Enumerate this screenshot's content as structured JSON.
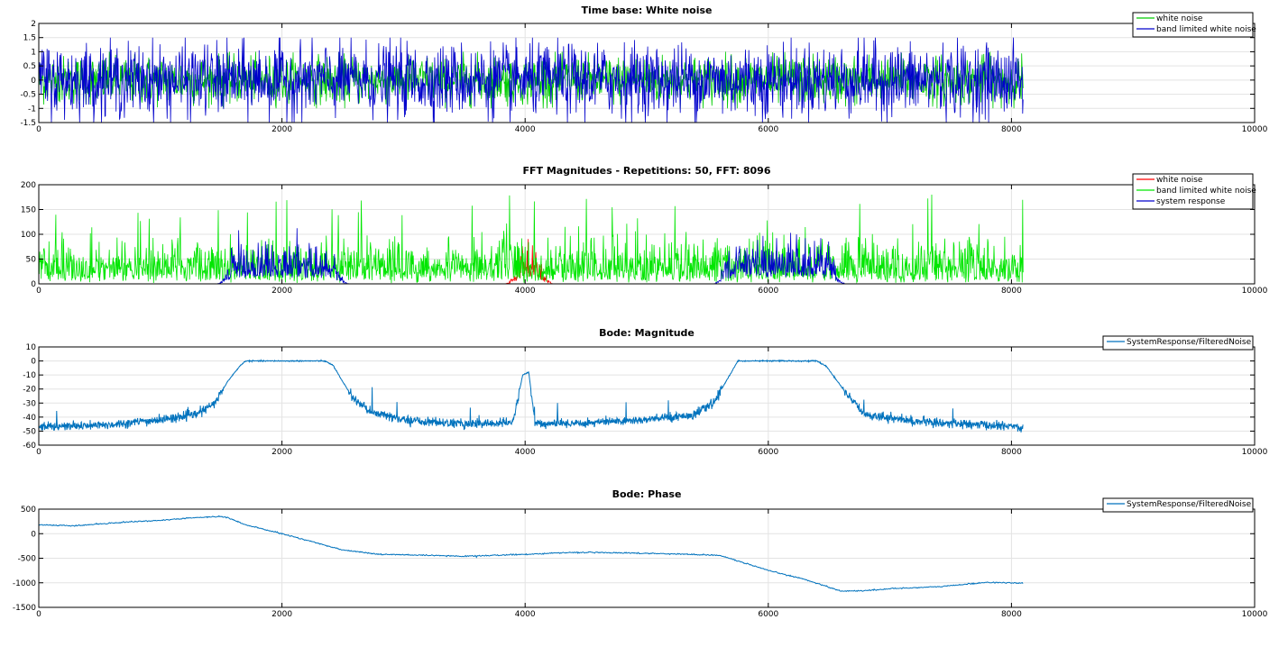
{
  "chart_data": [
    {
      "type": "line",
      "title": "Time base: White noise",
      "xlim": [
        0,
        10000
      ],
      "ylim": [
        -1.5,
        2
      ],
      "xticks": [
        0,
        2000,
        4000,
        6000,
        8000,
        10000
      ],
      "yticks": [
        -1.5,
        -1,
        -0.5,
        0,
        0.5,
        1,
        1.5,
        2
      ],
      "grid": true,
      "legend_position": "top-right",
      "series": [
        {
          "name": "white noise",
          "color": "#00cc00",
          "kind": "noise",
          "x_range": [
            0,
            8096
          ],
          "amplitude": 1.0,
          "values": []
        },
        {
          "name": "band limited white noise",
          "color": "#0000cc",
          "kind": "noise",
          "x_range": [
            0,
            8096
          ],
          "amplitude": 1.5,
          "values": []
        }
      ]
    },
    {
      "type": "line",
      "title": "FFT Magnitudes - Repetitions: 50, FFT: 8096",
      "xlim": [
        0,
        10000
      ],
      "ylim": [
        0,
        200
      ],
      "xticks": [
        0,
        2000,
        4000,
        6000,
        8000,
        10000
      ],
      "yticks": [
        0,
        50,
        100,
        150,
        200
      ],
      "grid": true,
      "legend_position": "top-right",
      "series": [
        {
          "name": "white noise",
          "color": "#ff0000",
          "kind": "fft-band",
          "bands": [
            [
              3970,
              4100
            ]
          ],
          "level": 110,
          "values": []
        },
        {
          "name": "band limited white noise",
          "color": "#00e600",
          "kind": "fft-full",
          "x_range": [
            0,
            8096
          ],
          "level": 110,
          "values": []
        },
        {
          "name": "system response",
          "color": "#0000cc",
          "kind": "fft-band",
          "bands": [
            [
              1600,
              2420
            ],
            [
              5680,
              6500
            ]
          ],
          "level": 120,
          "values": []
        }
      ]
    },
    {
      "type": "line",
      "title": "Bode: Magnitude",
      "xlim": [
        0,
        10000
      ],
      "ylim": [
        -60,
        10
      ],
      "xticks": [
        0,
        2000,
        4000,
        6000,
        8000,
        10000
      ],
      "yticks": [
        -60,
        -50,
        -40,
        -30,
        -20,
        -10,
        0,
        10
      ],
      "grid": true,
      "legend_position": "top-right",
      "series": [
        {
          "name": "SystemResponse/FilteredNoise",
          "color": "#0072bd",
          "kind": "bode-mag",
          "x": [
            0,
            500,
            1000,
            1300,
            1450,
            1550,
            1650,
            1700,
            2350,
            2420,
            2500,
            2600,
            2750,
            3000,
            3500,
            3900,
            3980,
            4030,
            4080,
            4120,
            4500,
            5000,
            5400,
            5550,
            5650,
            5750,
            6400,
            6480,
            6580,
            6680,
            6800,
            7200,
            7600,
            8096
          ],
          "values": [
            -47,
            -46,
            -42,
            -38,
            -30,
            -15,
            -4,
            0,
            0,
            -3,
            -15,
            -28,
            -37,
            -42,
            -45,
            -44,
            -10,
            -8,
            -44,
            -45,
            -44,
            -42,
            -38,
            -30,
            -15,
            0,
            0,
            -4,
            -16,
            -28,
            -38,
            -43,
            -45,
            -47
          ]
        }
      ]
    },
    {
      "type": "line",
      "title": "Bode: Phase",
      "xlim": [
        0,
        10000
      ],
      "ylim": [
        -1500,
        500
      ],
      "xticks": [
        0,
        2000,
        4000,
        6000,
        8000,
        10000
      ],
      "yticks": [
        -1500,
        -1000,
        -500,
        0,
        500
      ],
      "grid": true,
      "legend_position": "top-right",
      "series": [
        {
          "name": "SystemResponse/FilteredNoise",
          "color": "#0072bd",
          "kind": "smooth",
          "x": [
            0,
            300,
            500,
            800,
            1000,
            1300,
            1500,
            1550,
            1700,
            2000,
            2500,
            2800,
            3000,
            3500,
            4000,
            4400,
            4800,
            5200,
            5600,
            6000,
            6300,
            6600,
            6800,
            7000,
            7400,
            7800,
            8096
          ],
          "values": [
            180,
            160,
            200,
            250,
            270,
            330,
            350,
            330,
            180,
            0,
            -330,
            -420,
            -430,
            -460,
            -420,
            -380,
            -390,
            -410,
            -440,
            -750,
            -930,
            -1170,
            -1160,
            -1120,
            -1080,
            -990,
            -1010
          ]
        }
      ]
    }
  ]
}
